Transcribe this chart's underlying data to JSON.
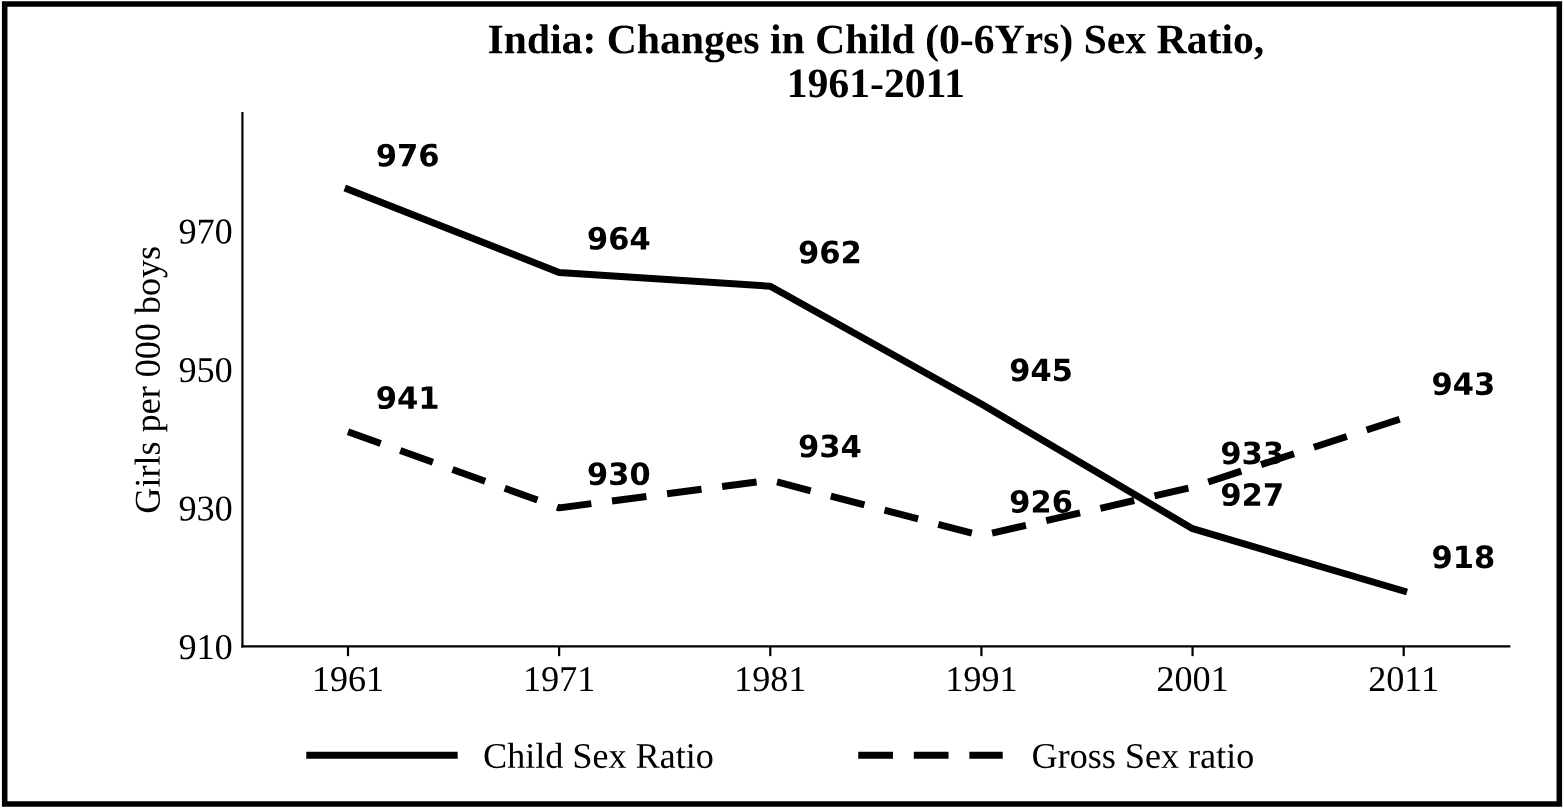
{
  "chart_data": {
    "type": "line",
    "title": "India: Changes in Child (0-6Yrs) Sex Ratio,\n1961-2011",
    "ylabel": "Girls per 000 boys",
    "categories": [
      "1961",
      "1971",
      "1981",
      "1991",
      "2001",
      "2011"
    ],
    "series": [
      {
        "name": "Child Sex Ratio",
        "color": "#000000",
        "line_style": "solid",
        "values": [
          976,
          964,
          962,
          945,
          927,
          918
        ]
      },
      {
        "name": "Gross Sex ratio",
        "color": "#000000",
        "line_style": "dashed",
        "values": [
          941,
          930,
          934,
          926,
          933,
          943
        ]
      }
    ],
    "ylim": [
      910,
      987
    ],
    "yticks": [
      910,
      930,
      950,
      970
    ],
    "grid": false,
    "legend": "bottom",
    "data_labels": true,
    "marker": "none"
  }
}
